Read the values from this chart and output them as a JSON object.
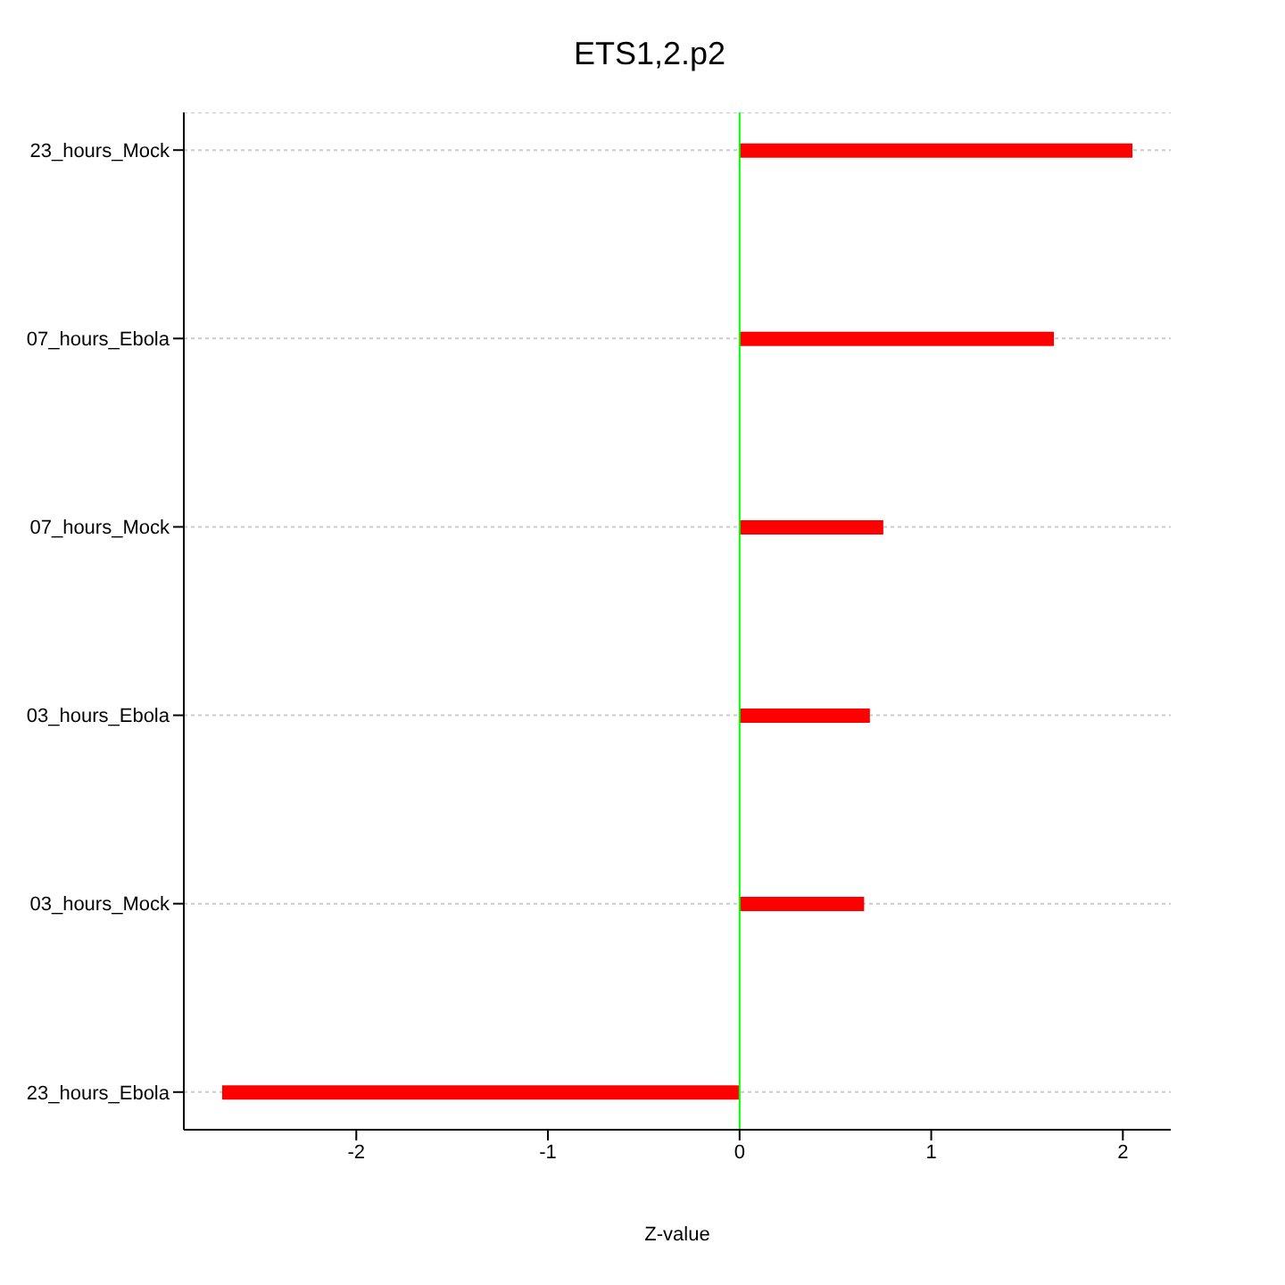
{
  "chart_data": {
    "type": "bar",
    "orientation": "horizontal",
    "title": "ETS1,2.p2",
    "xlabel": "Z-value",
    "categories": [
      "23_hours_Mock",
      "07_hours_Ebola",
      "07_hours_Mock",
      "03_hours_Ebola",
      "03_hours_Mock",
      "23_hours_Ebola"
    ],
    "values": [
      2.05,
      1.64,
      0.75,
      0.68,
      0.65,
      -2.7
    ],
    "color": "#ff0000",
    "xlim": [
      -2.9,
      2.25
    ],
    "xticks": [
      -2,
      -1,
      0,
      1,
      2
    ],
    "grid": "y",
    "ref_lines": [
      {
        "axis": "x",
        "value": 0,
        "color": "#00ff00"
      }
    ]
  }
}
